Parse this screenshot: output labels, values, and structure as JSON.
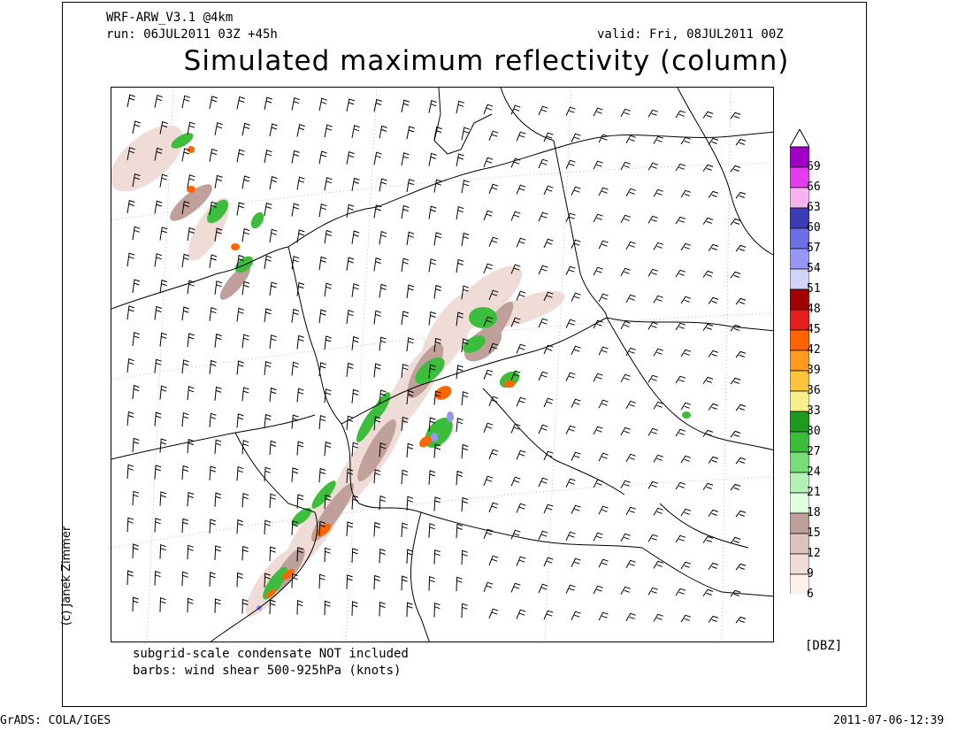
{
  "header": {
    "model": "WRF-ARW_V3.1 @4km",
    "run": "run: 06JUL2011 03Z +45h",
    "valid": "valid: Fri, 08JUL2011 00Z",
    "title": "Simulated maximum reflectivity (column)"
  },
  "notes": {
    "line1": "subgrid-scale condensate NOT included",
    "line2": "barbs: wind shear 500-925hPa (knots)"
  },
  "legend": {
    "unit": "[DBZ]",
    "levels": [
      {
        "label": "69",
        "color": "#a000c8"
      },
      {
        "label": "66",
        "color": "#e63cf0"
      },
      {
        "label": "63",
        "color": "#f5b4f0"
      },
      {
        "label": "60",
        "color": "#3c3cb4"
      },
      {
        "label": "57",
        "color": "#6e6ee6"
      },
      {
        "label": "54",
        "color": "#9696f5"
      },
      {
        "label": "51",
        "color": "#d2d2fa"
      },
      {
        "label": "48",
        "color": "#a00000"
      },
      {
        "label": "45",
        "color": "#e61e1e"
      },
      {
        "label": "42",
        "color": "#ff6400"
      },
      {
        "label": "39",
        "color": "#ff9a1e"
      },
      {
        "label": "36",
        "color": "#ffc33c"
      },
      {
        "label": "33",
        "color": "#f5f08c"
      },
      {
        "label": "30",
        "color": "#1e9b1e"
      },
      {
        "label": "27",
        "color": "#3cbe3c"
      },
      {
        "label": "24",
        "color": "#78dc78"
      },
      {
        "label": "21",
        "color": "#b4f0b4"
      },
      {
        "label": "18",
        "color": "#e1ffe1"
      },
      {
        "label": "15",
        "color": "#bfa09a"
      },
      {
        "label": "12",
        "color": "#dcc3bd"
      },
      {
        "label": "9",
        "color": "#f0dcd7"
      },
      {
        "label": "6",
        "color": "#fff0ec"
      }
    ]
  },
  "credit": "(c) Janek Zimmer",
  "footer": {
    "left": "GrADS: COLA/IGES",
    "right": "2011-07-06-12:39"
  }
}
